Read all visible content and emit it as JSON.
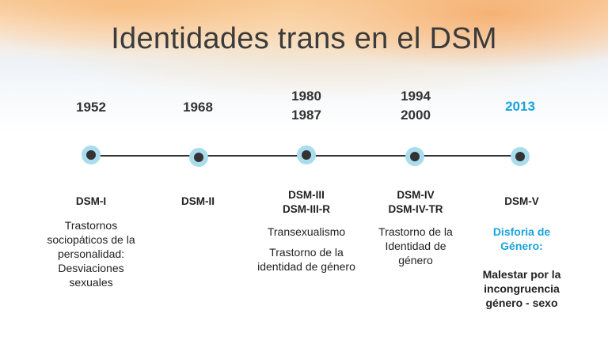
{
  "title": "Identidades trans en el DSM",
  "accent_color": "#1aa3dd",
  "timeline": [
    {
      "years": [
        "1952"
      ],
      "manuals": [
        "DSM-I"
      ],
      "descriptions": [
        "Trastornos sociopáticos de la personalidad: Desviaciones sexuales"
      ]
    },
    {
      "years": [
        "1968"
      ],
      "manuals": [
        "DSM-II"
      ],
      "descriptions": []
    },
    {
      "years": [
        "1980",
        "1987"
      ],
      "manuals": [
        "DSM-III",
        "DSM-III-R"
      ],
      "descriptions": [
        "Transexualismo",
        "Trastorno de la identidad de género"
      ]
    },
    {
      "years": [
        "1994",
        "2000"
      ],
      "manuals": [
        "DSM-IV",
        "DSM-IV-TR"
      ],
      "descriptions": [
        "Trastorno de la Identidad de género"
      ]
    },
    {
      "years": [
        "2013"
      ],
      "manuals": [
        "DSM-V"
      ],
      "highlight": "Disforia de Género:",
      "descriptions": [
        "Malestar por la incongruencia género - sexo"
      ]
    }
  ]
}
